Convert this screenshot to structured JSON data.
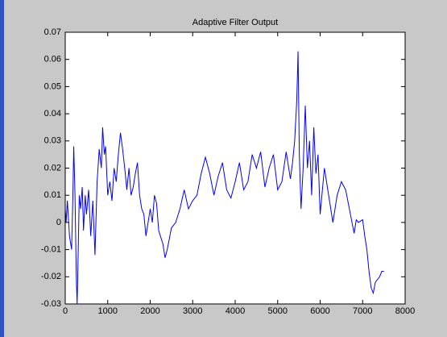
{
  "chart_data": {
    "type": "line",
    "title": "Adaptive Filter Output",
    "x": [
      0,
      20,
      50,
      100,
      150,
      180,
      200,
      230,
      260,
      280,
      300,
      330,
      360,
      400,
      430,
      470,
      500,
      550,
      600,
      650,
      700,
      750,
      800,
      850,
      880,
      920,
      950,
      1000,
      1050,
      1100,
      1150,
      1200,
      1250,
      1300,
      1350,
      1400,
      1450,
      1500,
      1550,
      1600,
      1650,
      1700,
      1750,
      1800,
      1850,
      1900,
      1950,
      2000,
      2050,
      2100,
      2150,
      2200,
      2300,
      2350,
      2400,
      2500,
      2600,
      2700,
      2800,
      2900,
      3000,
      3100,
      3200,
      3300,
      3400,
      3500,
      3600,
      3700,
      3800,
      3900,
      4000,
      4100,
      4200,
      4300,
      4400,
      4500,
      4600,
      4700,
      4800,
      4900,
      5000,
      5100,
      5200,
      5300,
      5350,
      5400,
      5450,
      5480,
      5510,
      5550,
      5600,
      5650,
      5700,
      5750,
      5800,
      5850,
      5900,
      5950,
      6000,
      6100,
      6200,
      6300,
      6400,
      6500,
      6600,
      6700,
      6800,
      6850,
      6900,
      7000,
      7050,
      7100,
      7150,
      7200,
      7250,
      7300,
      7400,
      7450,
      7500
    ],
    "series": [
      {
        "name": "output",
        "color": "#0000ff",
        "values": [
          0.005,
          0.0,
          0.008,
          -0.005,
          -0.01,
          0.01,
          0.028,
          0.01,
          -0.02,
          -0.03,
          -0.015,
          0.01,
          0.005,
          0.013,
          -0.003,
          0.01,
          0.003,
          0.012,
          -0.005,
          0.008,
          -0.012,
          0.015,
          0.027,
          0.02,
          0.035,
          0.025,
          0.028,
          0.01,
          0.015,
          0.008,
          0.02,
          0.015,
          0.025,
          0.033,
          0.027,
          0.02,
          0.012,
          0.02,
          0.01,
          0.013,
          0.018,
          0.022,
          0.01,
          0.005,
          0.003,
          -0.005,
          0.0,
          0.005,
          0.0,
          0.01,
          0.007,
          -0.003,
          -0.008,
          -0.013,
          -0.01,
          -0.002,
          0.0,
          0.005,
          0.012,
          0.005,
          0.008,
          0.01,
          0.018,
          0.024,
          0.018,
          0.01,
          0.017,
          0.022,
          0.012,
          0.009,
          0.015,
          0.022,
          0.012,
          0.015,
          0.025,
          0.02,
          0.026,
          0.013,
          0.02,
          0.025,
          0.012,
          0.015,
          0.026,
          0.016,
          0.022,
          0.03,
          0.045,
          0.063,
          0.025,
          0.005,
          0.02,
          0.043,
          0.02,
          0.03,
          0.01,
          0.035,
          0.018,
          0.025,
          0.003,
          0.02,
          0.01,
          0.0,
          0.01,
          0.015,
          0.012,
          0.004,
          -0.004,
          0.001,
          0.0,
          0.001,
          -0.005,
          -0.01,
          -0.018,
          -0.024,
          -0.026,
          -0.022,
          -0.02,
          -0.018,
          -0.018
        ]
      }
    ],
    "xlim": [
      0,
      8000
    ],
    "xticks": [
      0,
      1000,
      2000,
      3000,
      4000,
      5000,
      6000,
      7000,
      8000
    ],
    "ylim": [
      -0.03,
      0.07
    ],
    "yticks": [
      -0.03,
      -0.02,
      -0.01,
      0,
      0.01,
      0.02,
      0.03,
      0.04,
      0.05,
      0.06,
      0.07
    ],
    "grid": false
  }
}
